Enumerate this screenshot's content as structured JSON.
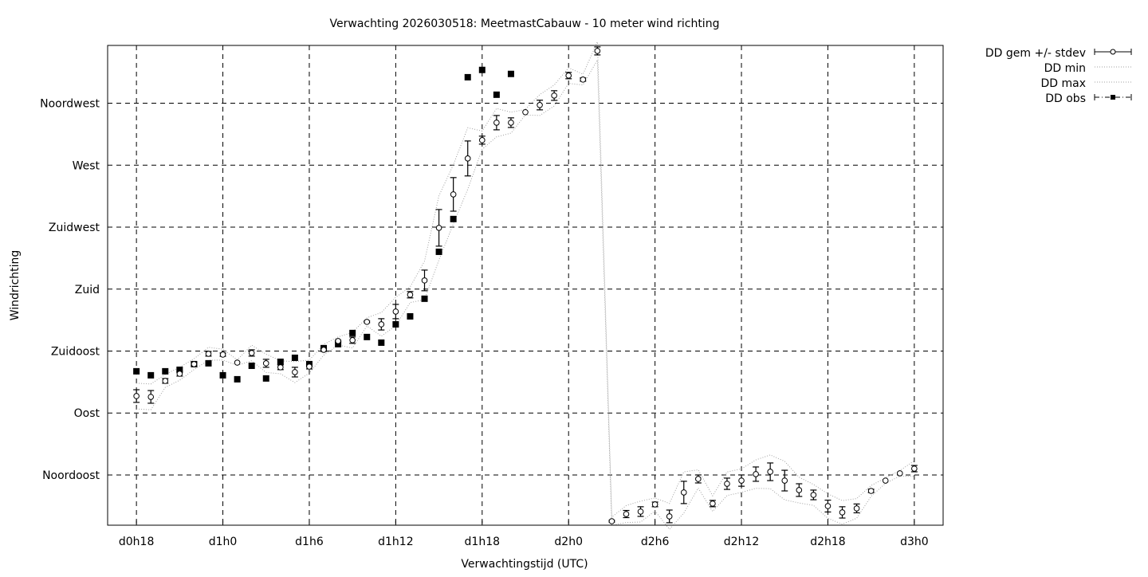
{
  "chart_data": {
    "type": "scatter",
    "title": "Verwachting 2026030518: MeetmastCabauw - 10 meter wind richting",
    "xlabel": "Verwachtingstijd (UTC)",
    "ylabel": "Windrichting",
    "x_unit": "hours since d0h0",
    "xlim": [
      16,
      74
    ],
    "ylim": [
      8.5,
      357
    ],
    "grid": true,
    "legend_position": "outside-top-right",
    "x_ticks": [
      {
        "value": 18,
        "label": "d0h18"
      },
      {
        "value": 24,
        "label": "d1h0"
      },
      {
        "value": 30,
        "label": "d1h6"
      },
      {
        "value": 36,
        "label": "d1h12"
      },
      {
        "value": 42,
        "label": "d1h18"
      },
      {
        "value": 48,
        "label": "d2h0"
      },
      {
        "value": 54,
        "label": "d2h6"
      },
      {
        "value": 60,
        "label": "d2h12"
      },
      {
        "value": 66,
        "label": "d2h18"
      },
      {
        "value": 72,
        "label": "d3h0"
      }
    ],
    "y_ticks": [
      {
        "value": 45,
        "label": "Noordoost"
      },
      {
        "value": 90,
        "label": "Oost"
      },
      {
        "value": 135,
        "label": "Zuidoost"
      },
      {
        "value": 180,
        "label": "Zuid"
      },
      {
        "value": 225,
        "label": "Zuidwest"
      },
      {
        "value": 270,
        "label": "West"
      },
      {
        "value": 315,
        "label": "Noordwest"
      }
    ],
    "legend": [
      "DD gem +/- stdev",
      "DD min",
      "DD max",
      "DD obs"
    ],
    "series": [
      {
        "name": "DD gem +/- stdev",
        "x": [
          18,
          19,
          20,
          21,
          22,
          23,
          24,
          25,
          26,
          27,
          28,
          29,
          30,
          31,
          32,
          33,
          34,
          35,
          36,
          37,
          38,
          39,
          40,
          41,
          42,
          43,
          44,
          45,
          46,
          47,
          48,
          49,
          50,
          51,
          52,
          53,
          54,
          55,
          56,
          57,
          58,
          59,
          60,
          61,
          62,
          63,
          64,
          65,
          66,
          67,
          68,
          69,
          70,
          71,
          72
        ],
        "values": [
          102.3,
          101.7,
          113.3,
          118.5,
          125.5,
          133.0,
          132.4,
          126.6,
          133.6,
          126.1,
          123.2,
          119.7,
          123.7,
          135.9,
          142.3,
          142.9,
          156.2,
          154.4,
          163.7,
          175.9,
          186.3,
          224.5,
          248.8,
          274.9,
          288.2,
          300.9,
          300.9,
          308.5,
          313.7,
          320.6,
          335.1,
          332.2,
          353.0,
          11.4,
          16.6,
          18.4,
          23.6,
          14.9,
          32.3,
          42.1,
          24.2,
          38.6,
          40.9,
          45.6,
          47.3,
          40.9,
          34.0,
          30.5,
          22.4,
          17.8,
          20.7,
          33.4,
          40.9,
          46.2,
          49.6
        ],
        "stdev": [
          4.6,
          4.6,
          1.7,
          1.7,
          1.2,
          1.7,
          1.2,
          0,
          2.3,
          2.9,
          1.7,
          3.5,
          1.7,
          1.2,
          0.6,
          2.3,
          0.6,
          4.1,
          5.2,
          2.3,
          7.5,
          13.3,
          12.2,
          12.7,
          2.9,
          5.2,
          3.5,
          0,
          3.5,
          3.5,
          2.3,
          1.2,
          2.9,
          0.6,
          2.6,
          3.5,
          1.7,
          4.6,
          8.1,
          2.9,
          2.3,
          4.1,
          4.1,
          5.2,
          6.4,
          7.5,
          4.6,
          3.5,
          4.3,
          4.1,
          3.2,
          1.2,
          0,
          0,
          2.3
        ]
      },
      {
        "name": "DD obs",
        "x": [
          18,
          19,
          20,
          21,
          22,
          23,
          24,
          25,
          26,
          27,
          28,
          29,
          30,
          31,
          32,
          33,
          34,
          35,
          36,
          37,
          38,
          39,
          40,
          41,
          42,
          43,
          44
        ],
        "values": [
          120.3,
          117.4,
          120.3,
          121.4,
          125.5,
          126.1,
          117.4,
          114.5,
          124.3,
          115.1,
          127.2,
          130.1,
          125.5,
          137.1,
          140.0,
          148.1,
          145.2,
          141.1,
          154.4,
          160.2,
          173.0,
          207.1,
          230.9,
          333.9,
          339.2,
          321.2,
          336.3
        ]
      }
    ],
    "colors": {
      "mean": "#000000",
      "obs": "#000000",
      "minmax": "#a0a0a0",
      "grid": "#000000"
    }
  }
}
